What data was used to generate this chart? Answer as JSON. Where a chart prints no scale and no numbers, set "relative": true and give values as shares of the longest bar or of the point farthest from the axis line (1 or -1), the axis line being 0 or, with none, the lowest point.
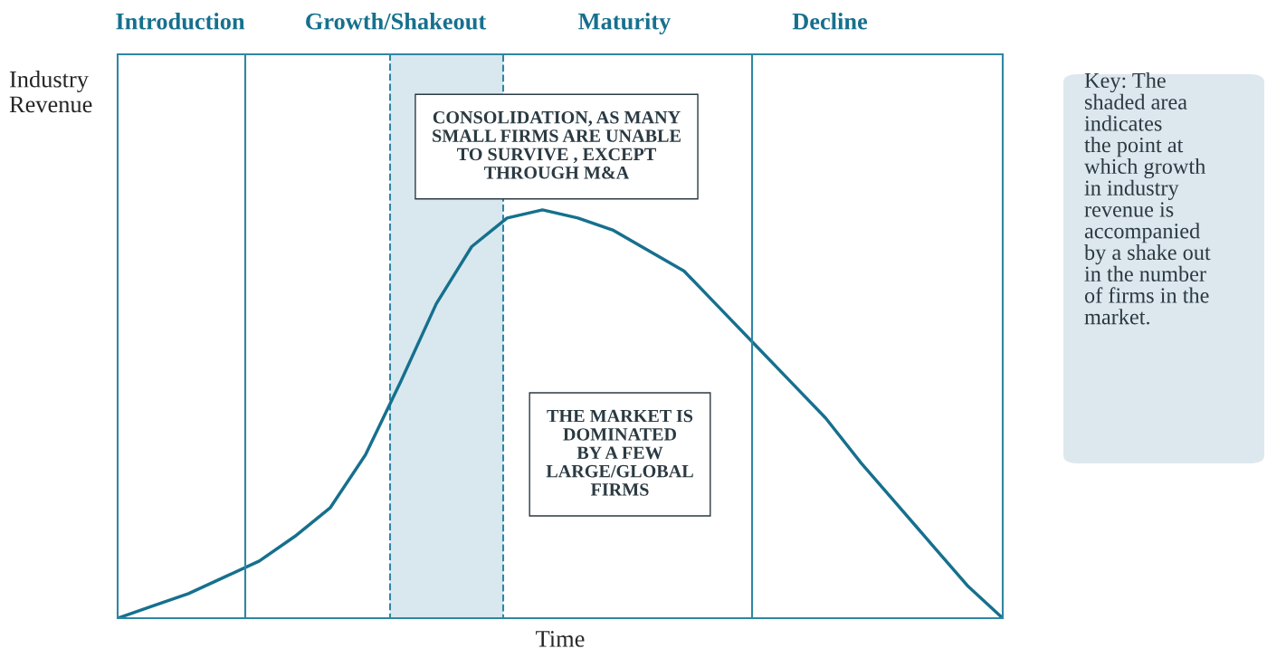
{
  "chart_data": {
    "type": "line",
    "relative": true,
    "xlabel": "Time",
    "ylabel": "Industry\nRevenue",
    "categories": [
      null,
      null,
      null,
      null,
      null,
      null,
      null,
      null,
      null,
      null,
      null,
      null,
      null,
      null,
      null,
      null,
      null,
      null,
      null,
      null,
      null,
      null,
      null,
      null,
      null,
      null
    ],
    "series": [
      {
        "color": "#16708e",
        "values": [
          0,
          0.03,
          0.06,
          0.1,
          0.14,
          0.2,
          0.27,
          0.4,
          0.58,
          0.77,
          0.91,
          0.98,
          1,
          0.98,
          0.95,
          0.9,
          0.85,
          0.76,
          0.67,
          0.58,
          0.49,
          0.38,
          0.28,
          0.18,
          0.08,
          0
        ]
      }
    ],
    "annotations": [
      "Introduction",
      "Growth/Shakeout",
      "Maturity",
      "Decline",
      "CONSOLIDATION, AS MANY\nSMALL FIRMS ARE UNABLE\nTO SURVIVE , EXCEPT\nTHROUGH M&A",
      "THE MARKET IS\nDOMINATED\nBY A FEW\nLARGE/GLOBAL\nFIRMS",
      "Key: The\nshaded area\nindicates\nthe point at\nwhich growth\nin industry\nrevenue is\naccompanied\nby a shake out\nin the number\nof firms in the\nmarket."
    ],
    "grid": false,
    "legend": false
  }
}
